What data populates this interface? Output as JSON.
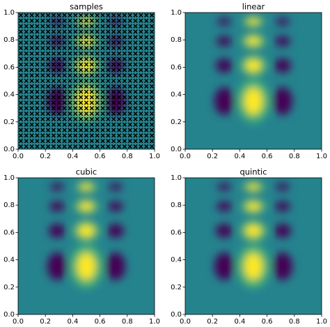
{
  "chart_data": [
    {
      "type": "heatmap",
      "title": "samples",
      "sample_points": {
        "x": [
          0.02,
          0.06,
          0.1,
          0.14,
          0.18,
          0.22,
          0.26,
          0.3,
          0.34,
          0.38,
          0.42,
          0.46,
          0.5,
          0.54,
          0.58,
          0.62,
          0.66,
          0.7,
          0.74,
          0.78,
          0.82,
          0.86,
          0.9,
          0.94,
          0.98
        ],
        "y": [
          0.02,
          0.06,
          0.1,
          0.14,
          0.18,
          0.22,
          0.26,
          0.3,
          0.34,
          0.38,
          0.42,
          0.46,
          0.5,
          0.54,
          0.58,
          0.62,
          0.66,
          0.7,
          0.74,
          0.78,
          0.82,
          0.86,
          0.9,
          0.94,
          0.98
        ]
      },
      "xlim": [
        0,
        1
      ],
      "ylim": [
        0,
        1
      ],
      "xticks": [
        {
          "value": 0,
          "label": "0.0"
        },
        {
          "value": 0.2,
          "label": "0.2"
        },
        {
          "value": 0.4,
          "label": "0.4"
        },
        {
          "value": 0.6,
          "label": "0.6"
        },
        {
          "value": 0.8,
          "label": "0.8"
        },
        {
          "value": 1,
          "label": "1.0"
        }
      ],
      "yticks": [
        {
          "value": 0,
          "label": "0.0"
        },
        {
          "value": 0.2,
          "label": "0.2"
        },
        {
          "value": 0.4,
          "label": "0.4"
        },
        {
          "value": 0.6,
          "label": "0.6"
        },
        {
          "value": 0.8,
          "label": "0.8"
        },
        {
          "value": 1,
          "label": "1.0"
        }
      ]
    },
    {
      "type": "heatmap",
      "title": "linear",
      "xlim": [
        0,
        1
      ],
      "ylim": [
        0,
        1
      ],
      "xticks": [
        {
          "value": 0,
          "label": "0.0"
        },
        {
          "value": 0.2,
          "label": "0.2"
        },
        {
          "value": 0.4,
          "label": "0.4"
        },
        {
          "value": 0.6,
          "label": "0.6"
        },
        {
          "value": 0.8,
          "label": "0.8"
        },
        {
          "value": 1,
          "label": "1.0"
        }
      ],
      "yticks": [
        {
          "value": 0,
          "label": "0.0"
        },
        {
          "value": 0.2,
          "label": "0.2"
        },
        {
          "value": 0.4,
          "label": "0.4"
        },
        {
          "value": 0.6,
          "label": "0.6"
        },
        {
          "value": 0.8,
          "label": "0.8"
        },
        {
          "value": 1,
          "label": "1.0"
        }
      ]
    },
    {
      "type": "heatmap",
      "title": "cubic",
      "xlim": [
        0,
        1
      ],
      "ylim": [
        0,
        1
      ],
      "xticks": [
        {
          "value": 0,
          "label": "0.0"
        },
        {
          "value": 0.2,
          "label": "0.2"
        },
        {
          "value": 0.4,
          "label": "0.4"
        },
        {
          "value": 0.6,
          "label": "0.6"
        },
        {
          "value": 0.8,
          "label": "0.8"
        },
        {
          "value": 1,
          "label": "1.0"
        }
      ],
      "yticks": [
        {
          "value": 0,
          "label": "0.0"
        },
        {
          "value": 0.2,
          "label": "0.2"
        },
        {
          "value": 0.4,
          "label": "0.4"
        },
        {
          "value": 0.6,
          "label": "0.6"
        },
        {
          "value": 0.8,
          "label": "0.8"
        },
        {
          "value": 1,
          "label": "1.0"
        }
      ]
    },
    {
      "type": "heatmap",
      "title": "quintic",
      "xlim": [
        0,
        1
      ],
      "ylim": [
        0,
        1
      ],
      "xticks": [
        {
          "value": 0,
          "label": "0.0"
        },
        {
          "value": 0.2,
          "label": "0.2"
        },
        {
          "value": 0.4,
          "label": "0.4"
        },
        {
          "value": 0.6,
          "label": "0.6"
        },
        {
          "value": 0.8,
          "label": "0.8"
        },
        {
          "value": 1,
          "label": "1.0"
        }
      ],
      "yticks": [
        {
          "value": 0,
          "label": "0.0"
        },
        {
          "value": 0.2,
          "label": "0.2"
        },
        {
          "value": 0.4,
          "label": "0.4"
        },
        {
          "value": 0.6,
          "label": "0.6"
        },
        {
          "value": 0.8,
          "label": "0.8"
        },
        {
          "value": 1,
          "label": "1.0"
        }
      ]
    }
  ]
}
